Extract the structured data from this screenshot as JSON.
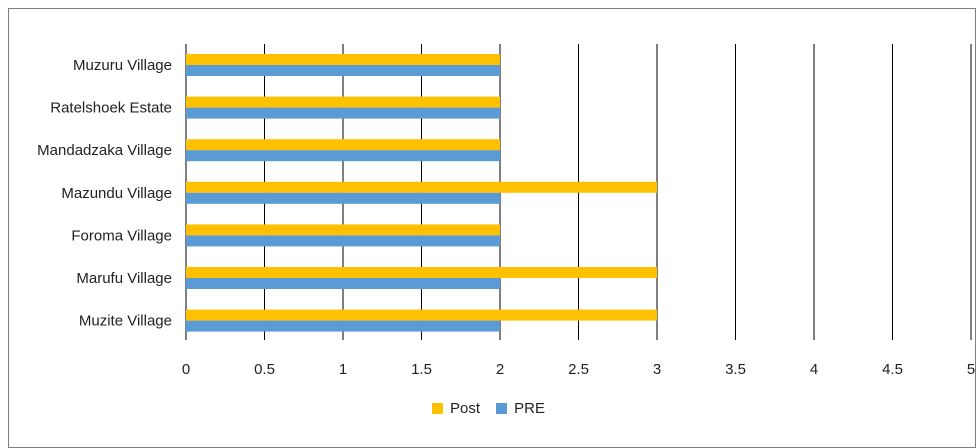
{
  "chart_data": {
    "type": "bar",
    "orientation": "horizontal",
    "categories": [
      "Muzuru Village",
      "Ratelshoek Estate",
      "Mandadzaka Village",
      "Mazundu Village",
      "Foroma Village",
      "Marufu Village",
      "Muzite Village"
    ],
    "series": [
      {
        "name": "Post",
        "color": "#FFC000",
        "values": [
          2,
          2,
          2,
          3,
          2,
          3,
          3
        ]
      },
      {
        "name": "PRE",
        "color": "#5B9BD5",
        "values": [
          2,
          2,
          2,
          2,
          2,
          2,
          2
        ]
      }
    ],
    "xlim": [
      0,
      5
    ],
    "x_ticks": [
      "0",
      "0.5",
      "1",
      "1.5",
      "2",
      "2.5",
      "3",
      "3.5",
      "4",
      "4.5",
      "5"
    ],
    "grid": "vertical",
    "legend_position": "bottom"
  }
}
